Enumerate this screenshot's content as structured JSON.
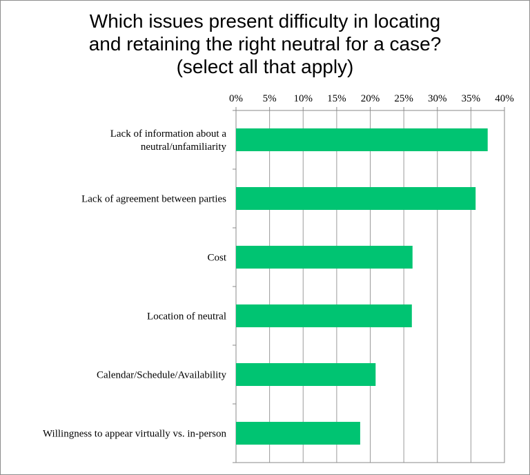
{
  "chart_data": {
    "type": "bar",
    "orientation": "horizontal",
    "title_lines": [
      "Which issues present difficulty in locating",
      "and retaining the right neutral for a case?",
      "(select all that apply)"
    ],
    "categories": [
      "Lack of information about a neutral/unfamiliarity",
      "Lack of agreement between parties",
      "Cost",
      "Location of neutral",
      "Calendar/Schedule/Availability",
      "Willingness to appear virtually vs. in-person"
    ],
    "category_label_lines": [
      [
        "Lack of information about a",
        "neutral/unfamiliarity"
      ],
      [
        "Lack of agreement between parties"
      ],
      [
        "Cost"
      ],
      [
        "Location of neutral"
      ],
      [
        "Calendar/Schedule/Availability"
      ],
      [
        "Willingness to appear virtually vs. in-person"
      ]
    ],
    "values": [
      37.5,
      35.7,
      26.3,
      26.2,
      20.8,
      18.5
    ],
    "xlim": [
      0,
      40
    ],
    "xticks": [
      0,
      5,
      10,
      15,
      20,
      25,
      30,
      35,
      40
    ],
    "xtick_labels": [
      "0%",
      "5%",
      "10%",
      "15%",
      "20%",
      "25%",
      "30%",
      "35%",
      "40%"
    ],
    "axis_position": "top",
    "grid": true,
    "legend": "none",
    "bar_color": "#00c472",
    "grid_color": "#9a9a9a",
    "axis_color": "#888888"
  }
}
